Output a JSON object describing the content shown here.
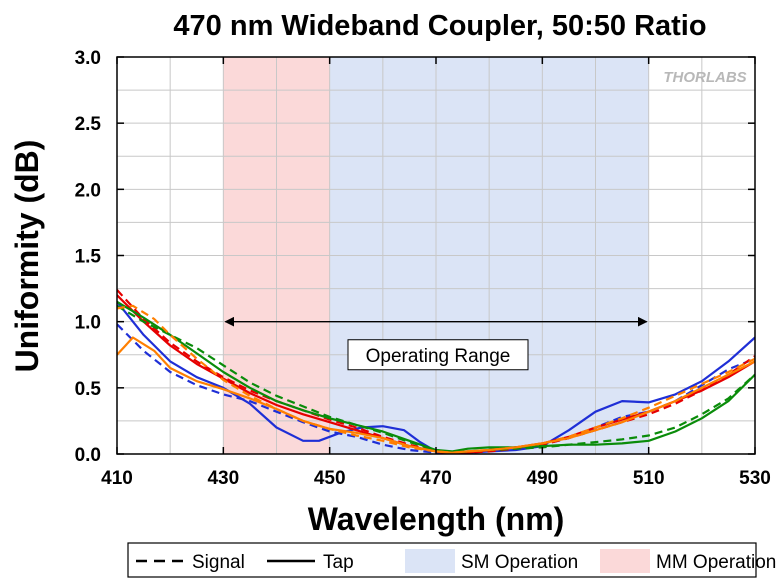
{
  "chart_data": {
    "type": "line",
    "title": "470 nm Wideband Coupler, 50:50 Ratio",
    "xlabel": "Wavelength (nm)",
    "ylabel": "Uniformity (dB)",
    "xlim": [
      410,
      530
    ],
    "ylim": [
      0,
      3
    ],
    "xticks": [
      "410",
      "430",
      "450",
      "470",
      "490",
      "510",
      "530"
    ],
    "yticks": [
      "0.0",
      "0.5",
      "1.0",
      "1.5",
      "2.0",
      "2.5",
      "3.0"
    ],
    "grid": true,
    "watermark": "THORLABS",
    "shaded_regions": [
      {
        "label": "MM Operation",
        "x": [
          430,
          450
        ],
        "color": "#fbd9d9"
      },
      {
        "label": "SM Operation",
        "x": [
          450,
          510
        ],
        "color": "#dbe4f6"
      }
    ],
    "annotation": {
      "label": "Operating Range",
      "x": [
        430,
        510
      ],
      "arrow_y": 1.0,
      "box_y": 0.75
    },
    "legend": {
      "placement": "bottom",
      "items": [
        {
          "label": "Signal",
          "style": "dashed"
        },
        {
          "label": "Tap",
          "style": "solid"
        },
        {
          "label": "SM Operation",
          "style": "patch",
          "color": "#dbe4f6"
        },
        {
          "label": "MM Operation",
          "style": "patch",
          "color": "#fbd9d9"
        }
      ]
    },
    "series": [
      {
        "color": "#1f2fd6",
        "dash": false,
        "x": [
          410,
          415,
          420,
          425,
          430,
          435,
          440,
          445,
          448,
          452,
          456,
          460,
          464,
          467,
          470,
          473,
          476,
          480,
          485,
          490,
          495,
          500,
          505,
          510,
          515,
          520,
          525,
          530
        ],
        "y": [
          1.15,
          0.9,
          0.7,
          0.58,
          0.5,
          0.38,
          0.2,
          0.1,
          0.1,
          0.16,
          0.2,
          0.21,
          0.18,
          0.09,
          0.02,
          0.0,
          0.01,
          0.02,
          0.03,
          0.06,
          0.18,
          0.32,
          0.4,
          0.39,
          0.45,
          0.55,
          0.7,
          0.88
        ]
      },
      {
        "color": "#1f2fd6",
        "dash": true,
        "x": [
          410,
          415,
          420,
          425,
          430,
          435,
          440,
          445,
          450,
          455,
          460,
          465,
          470,
          473,
          476,
          480,
          485,
          490,
          495,
          500,
          505,
          510,
          515,
          520,
          525,
          530
        ],
        "y": [
          0.98,
          0.78,
          0.62,
          0.52,
          0.45,
          0.4,
          0.32,
          0.24,
          0.17,
          0.13,
          0.07,
          0.03,
          0.01,
          0.0,
          0.01,
          0.03,
          0.05,
          0.07,
          0.12,
          0.2,
          0.28,
          0.32,
          0.4,
          0.52,
          0.64,
          0.72
        ]
      },
      {
        "color": "#e60000",
        "dash": false,
        "x": [
          410,
          415,
          420,
          425,
          430,
          435,
          440,
          445,
          450,
          455,
          460,
          465,
          470,
          473,
          476,
          480,
          485,
          490,
          495,
          500,
          505,
          510,
          515,
          520,
          525,
          530
        ],
        "y": [
          1.2,
          1.0,
          0.82,
          0.68,
          0.57,
          0.46,
          0.37,
          0.3,
          0.24,
          0.18,
          0.12,
          0.06,
          0.02,
          0.01,
          0.01,
          0.03,
          0.05,
          0.08,
          0.13,
          0.2,
          0.26,
          0.32,
          0.4,
          0.48,
          0.58,
          0.7
        ]
      },
      {
        "color": "#e60000",
        "dash": true,
        "x": [
          410,
          415,
          420,
          425,
          430,
          435,
          440,
          445,
          450,
          455,
          460,
          465,
          470,
          473,
          476,
          480,
          485,
          490,
          495,
          500,
          505,
          510,
          515,
          520,
          525,
          530
        ],
        "y": [
          1.24,
          1.02,
          0.84,
          0.7,
          0.58,
          0.48,
          0.4,
          0.33,
          0.26,
          0.2,
          0.13,
          0.07,
          0.02,
          0.0,
          0.01,
          0.02,
          0.04,
          0.07,
          0.12,
          0.18,
          0.24,
          0.3,
          0.38,
          0.48,
          0.6,
          0.74
        ]
      },
      {
        "color": "#0a8c0a",
        "dash": false,
        "x": [
          410,
          415,
          420,
          425,
          430,
          435,
          440,
          445,
          450,
          455,
          460,
          465,
          470,
          473,
          476,
          480,
          485,
          490,
          495,
          500,
          505,
          510,
          515,
          520,
          525,
          530
        ],
        "y": [
          1.15,
          1.03,
          0.9,
          0.76,
          0.62,
          0.5,
          0.4,
          0.33,
          0.27,
          0.22,
          0.17,
          0.1,
          0.03,
          0.02,
          0.04,
          0.05,
          0.05,
          0.06,
          0.07,
          0.07,
          0.08,
          0.1,
          0.17,
          0.27,
          0.4,
          0.6
        ]
      },
      {
        "color": "#0a8c0a",
        "dash": true,
        "x": [
          410,
          415,
          420,
          425,
          430,
          435,
          440,
          445,
          450,
          455,
          460,
          465,
          470,
          473,
          476,
          480,
          485,
          490,
          495,
          500,
          505,
          510,
          515,
          520,
          525,
          530
        ],
        "y": [
          1.12,
          1.0,
          0.9,
          0.8,
          0.67,
          0.54,
          0.44,
          0.36,
          0.28,
          0.22,
          0.16,
          0.09,
          0.03,
          0.01,
          0.02,
          0.03,
          0.04,
          0.05,
          0.07,
          0.09,
          0.11,
          0.14,
          0.2,
          0.3,
          0.42,
          0.6
        ]
      },
      {
        "color": "#ff7f00",
        "dash": false,
        "x": [
          410,
          413,
          417,
          420,
          425,
          430,
          435,
          440,
          445,
          450,
          455,
          460,
          465,
          470,
          473,
          476,
          480,
          485,
          490,
          495,
          500,
          505,
          510,
          515,
          520,
          525,
          530
        ],
        "y": [
          0.75,
          0.88,
          0.78,
          0.65,
          0.55,
          0.49,
          0.42,
          0.34,
          0.25,
          0.19,
          0.16,
          0.12,
          0.06,
          0.02,
          0.01,
          0.02,
          0.03,
          0.05,
          0.08,
          0.12,
          0.18,
          0.24,
          0.32,
          0.4,
          0.5,
          0.6,
          0.7
        ]
      },
      {
        "color": "#ff7f00",
        "dash": true,
        "x": [
          410,
          413,
          417,
          420,
          425,
          430,
          435,
          440,
          445,
          450,
          455,
          460,
          465,
          470,
          473,
          476,
          480,
          485,
          490,
          495,
          500,
          505,
          510,
          515,
          520,
          525,
          530
        ],
        "y": [
          1.1,
          1.12,
          1.02,
          0.9,
          0.72,
          0.56,
          0.44,
          0.34,
          0.25,
          0.19,
          0.14,
          0.1,
          0.05,
          0.02,
          0.01,
          0.02,
          0.03,
          0.05,
          0.08,
          0.13,
          0.2,
          0.27,
          0.35,
          0.44,
          0.53,
          0.62,
          0.72
        ]
      }
    ]
  }
}
